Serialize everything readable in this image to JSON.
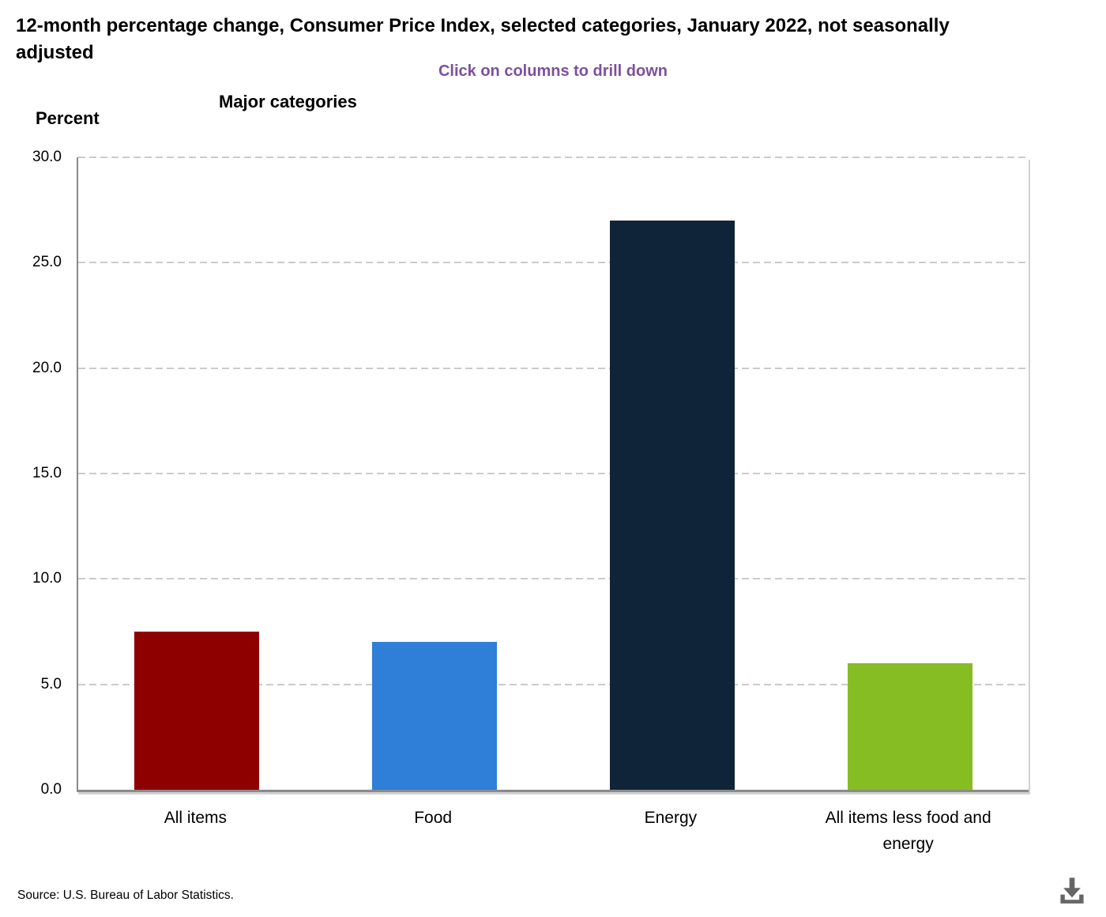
{
  "header": {
    "title": "12-month percentage change, Consumer Price Index, selected categories, January 2022, not seasonally adjusted",
    "subtitle": "Click on columns to drill down",
    "group_label": "Major categories",
    "yaxis_title": "Percent"
  },
  "chart_data": {
    "type": "bar",
    "title": "12-month percentage change, Consumer Price Index, selected categories, January 2022, not seasonally adjusted",
    "subtitle": "Click on columns to drill down",
    "xlabel": "Major categories",
    "ylabel": "Percent",
    "categories": [
      "All items",
      "Food",
      "Energy",
      "All items less food and energy"
    ],
    "values": [
      7.5,
      7.0,
      27.0,
      6.0
    ],
    "bar_colors": [
      "#8e0000",
      "#2f7ed8",
      "#0f2438",
      "#86bd22"
    ],
    "ylim": [
      0,
      30
    ],
    "yticks": [
      0,
      5,
      10,
      15,
      20,
      25,
      30
    ],
    "ytick_labels": [
      "0.0",
      "5.0",
      "10.0",
      "15.0",
      "20.0",
      "25.0",
      "30.0"
    ],
    "grid": true,
    "gridline_style": "dashed",
    "legend": false
  },
  "footer": {
    "source": "Source: U.S. Bureau of Labor Statistics.",
    "download_icon": "download-icon"
  },
  "colors": {
    "subtitle_text": "#7d509b",
    "axis_line": "#8a8a8a",
    "gridline": "#cbcbcb",
    "icon": "#666666"
  }
}
